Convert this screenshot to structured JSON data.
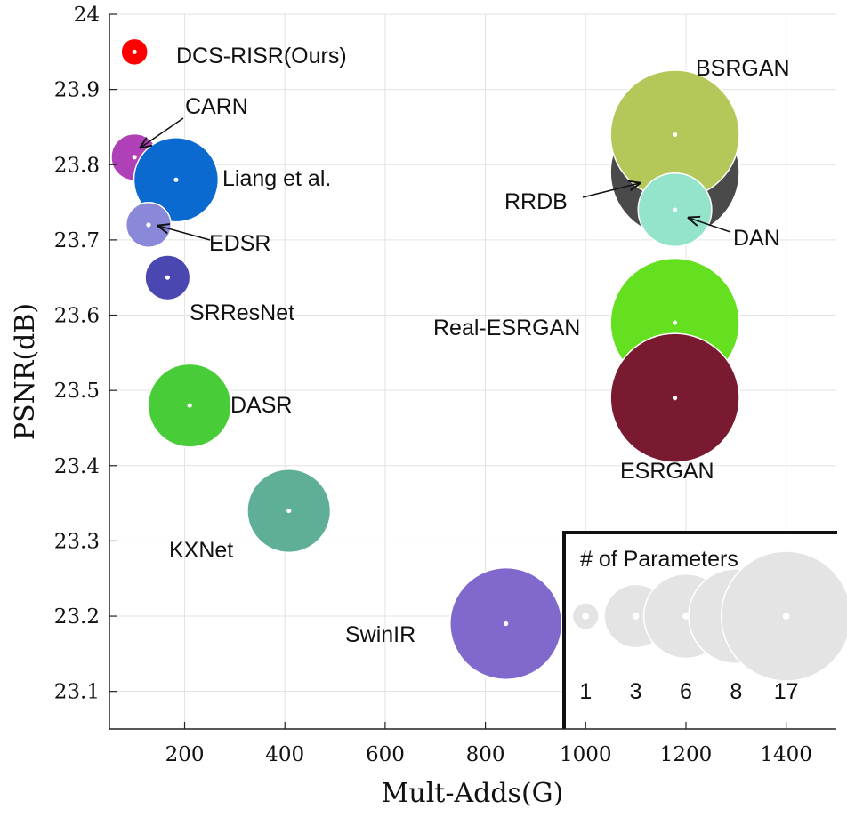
{
  "chart_data": {
    "type": "scatter",
    "xlabel": "Mult-Adds(G)",
    "ylabel": "PSNR(dB)",
    "xlim": [
      50,
      1500
    ],
    "ylim": [
      23.05,
      24.0
    ],
    "xticks": [
      200,
      400,
      600,
      800,
      1000,
      1200,
      1400
    ],
    "yticks": [
      23.1,
      23.2,
      23.3,
      23.4,
      23.5,
      23.6,
      23.7,
      23.8,
      23.9,
      24
    ],
    "grid": true,
    "points": [
      {
        "name": "DCS-RISR(Ours)",
        "x": 100,
        "y": 23.95,
        "params": 1,
        "color": "#ff0000"
      },
      {
        "name": "CARN",
        "x": 100,
        "y": 23.81,
        "params": 1.6,
        "color": "#b040b8"
      },
      {
        "name": "Liang et al.",
        "x": 183,
        "y": 23.78,
        "params": 6,
        "color": "#0a6ad0"
      },
      {
        "name": "EDSR",
        "x": 128,
        "y": 23.72,
        "params": 1.5,
        "color": "#8a88d8"
      },
      {
        "name": "SRResNet",
        "x": 166,
        "y": 23.65,
        "params": 1.5,
        "color": "#4a48b0"
      },
      {
        "name": "DASR",
        "x": 210,
        "y": 23.48,
        "params": 5.8,
        "color": "#48cc38"
      },
      {
        "name": "KXNet",
        "x": 408,
        "y": 23.34,
        "params": 5.8,
        "color": "#5fae98"
      },
      {
        "name": "SwinIR",
        "x": 841,
        "y": 23.19,
        "params": 11.9,
        "color": "#8068cc"
      },
      {
        "name": "RRDB",
        "x": 1178,
        "y": 23.79,
        "params": 16.7,
        "color": "#4a4a4a"
      },
      {
        "name": "BSRGAN",
        "x": 1178,
        "y": 23.84,
        "params": 16.7,
        "color": "#b4c85a"
      },
      {
        "name": "DAN",
        "x": 1178,
        "y": 23.74,
        "params": 4.3,
        "color": "#94e4cc"
      },
      {
        "name": "Real-ESRGAN",
        "x": 1178,
        "y": 23.59,
        "params": 16.7,
        "color": "#64e020"
      },
      {
        "name": "ESRGAN",
        "x": 1178,
        "y": 23.49,
        "params": 16.7,
        "color": "#7a1a30"
      }
    ],
    "legend": {
      "title": "# of Parameters",
      "placement": "bottom-right",
      "entries": [
        {
          "label": "1",
          "params": 1,
          "x": 1000,
          "y": 23.2
        },
        {
          "label": "3",
          "params": 3,
          "x": 1100,
          "y": 23.2
        },
        {
          "label": "6",
          "params": 6,
          "x": 1200,
          "y": 23.2
        },
        {
          "label": "8",
          "params": 8,
          "x": 1300,
          "y": 23.2
        },
        {
          "label": "17",
          "params": 17,
          "x": 1400,
          "y": 23.2
        }
      ]
    }
  }
}
